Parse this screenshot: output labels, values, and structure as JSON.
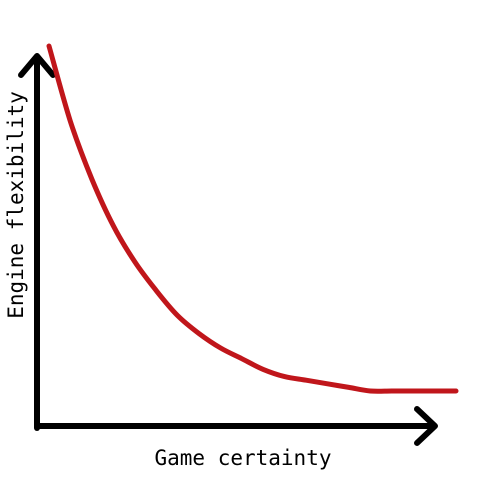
{
  "chart_data": {
    "type": "line",
    "title": "",
    "xlabel": "Game certainty",
    "ylabel": "Engine flexibility",
    "tick_labels": "none",
    "grid": false,
    "legend": "none",
    "series": [
      {
        "color": "#c0161b",
        "shape": "decreasing convex curve, flattening out",
        "x": [
          0.05,
          0.1,
          0.15,
          0.2,
          0.25,
          0.3,
          0.35,
          0.4,
          0.45,
          0.5,
          0.55,
          0.6,
          0.65,
          0.7,
          0.75,
          0.8,
          0.85,
          0.9,
          0.95,
          1.0
        ],
        "y": [
          1.0,
          0.79,
          0.63,
          0.5,
          0.4,
          0.32,
          0.25,
          0.2,
          0.16,
          0.13,
          0.1,
          0.08,
          0.07,
          0.06,
          0.05,
          0.04,
          0.04,
          0.04,
          0.04,
          0.04
        ]
      }
    ]
  },
  "colors": {
    "axis": "#000000",
    "curve": "#c0161b",
    "background": "#ffffff"
  }
}
